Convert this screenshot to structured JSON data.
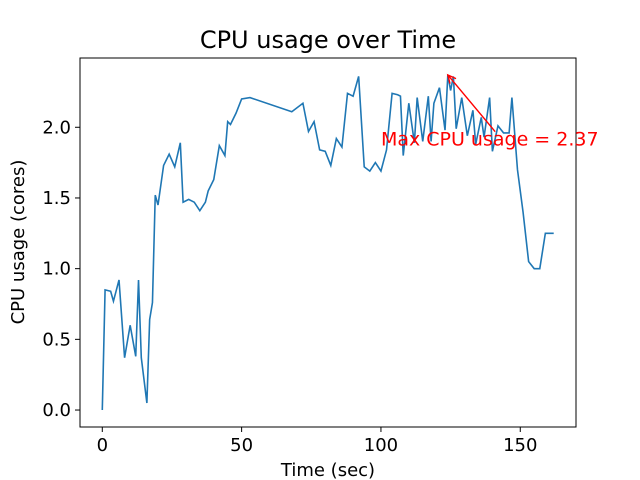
{
  "chart_data": {
    "type": "line",
    "title": "CPU usage over Time",
    "xlabel": "Time (sec)",
    "ylabel": "CPU usage (cores)",
    "xlim": [
      -8,
      170
    ],
    "ylim": [
      -0.12,
      2.49
    ],
    "xticks": [
      0,
      50,
      100,
      150
    ],
    "xtick_labels": [
      "0",
      "50",
      "100",
      "150"
    ],
    "yticks": [
      0.0,
      0.5,
      1.0,
      1.5,
      2.0
    ],
    "ytick_labels": [
      "0.0",
      "0.5",
      "1.0",
      "1.5",
      "2.0"
    ],
    "grid": false,
    "colors": {
      "line": "#1f77b4",
      "annotation": "#ff0000"
    },
    "series": [
      {
        "x": [
          0,
          1,
          3,
          4,
          6,
          8,
          10,
          12,
          13,
          14,
          16,
          17,
          18,
          19,
          20,
          22,
          24,
          26,
          28,
          29,
          31,
          33,
          35,
          37,
          38,
          40,
          42,
          44,
          45,
          46,
          48,
          50,
          53,
          68,
          72,
          74,
          76,
          78,
          80,
          82,
          84,
          86,
          88,
          90,
          92,
          94,
          96,
          98,
          100,
          102,
          104,
          106,
          107,
          108,
          110,
          112,
          113,
          115,
          117,
          118,
          119,
          121,
          123,
          124,
          125,
          126,
          127,
          129,
          131,
          133,
          134,
          136,
          137,
          139,
          140,
          142,
          144,
          146,
          147,
          149,
          151,
          153,
          155,
          157,
          159,
          160,
          162
        ],
        "values": [
          0.0,
          0.85,
          0.84,
          0.77,
          0.92,
          0.37,
          0.6,
          0.38,
          0.92,
          0.37,
          0.05,
          0.64,
          0.76,
          1.52,
          1.45,
          1.73,
          1.81,
          1.72,
          1.89,
          1.47,
          1.49,
          1.47,
          1.41,
          1.47,
          1.55,
          1.63,
          1.87,
          1.8,
          2.04,
          2.02,
          2.1,
          2.2,
          2.21,
          2.11,
          2.17,
          1.97,
          2.04,
          1.84,
          1.83,
          1.73,
          1.92,
          1.86,
          2.24,
          2.22,
          2.36,
          1.72,
          1.69,
          1.75,
          1.69,
          1.84,
          2.24,
          2.23,
          2.22,
          1.8,
          2.17,
          1.89,
          2.21,
          1.9,
          2.22,
          1.9,
          2.17,
          2.28,
          1.98,
          2.37,
          2.26,
          2.36,
          1.99,
          2.21,
          1.94,
          2.12,
          1.88,
          2.07,
          1.93,
          2.21,
          1.83,
          2.01,
          1.96,
          1.96,
          2.21,
          1.7,
          1.4,
          1.05,
          1.0,
          1.0,
          1.25,
          1.25,
          1.25
        ]
      }
    ],
    "annotation": {
      "text": "Max CPU usage = 2.37",
      "point": [
        124,
        2.37
      ],
      "text_pos": [
        100,
        1.87
      ]
    }
  }
}
